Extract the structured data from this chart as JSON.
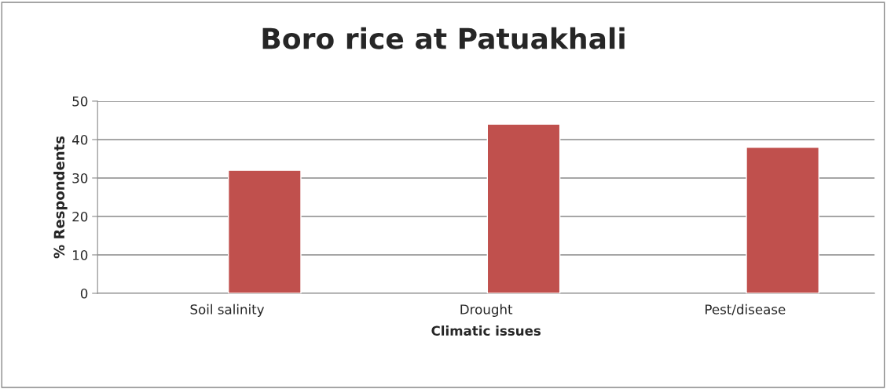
{
  "chart_data": {
    "type": "bar",
    "title": "Boro rice at Patuakhali",
    "xlabel": "Climatic issues",
    "ylabel": "% Respondents",
    "categories": [
      "Soil salinity",
      "Drought",
      "Pest/disease"
    ],
    "series": [
      {
        "color": "#c0504d",
        "values": [
          32,
          44,
          38
        ]
      }
    ],
    "ylim": [
      0,
      50
    ],
    "yticks": [
      0,
      10,
      20,
      30,
      40,
      50
    ],
    "grid": "y"
  }
}
